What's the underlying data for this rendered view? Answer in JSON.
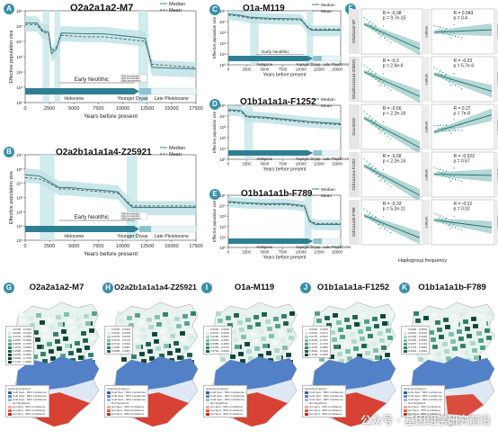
{
  "colors": {
    "median": "#3f7f86",
    "mean": "#555555",
    "band": "#bfe3e6",
    "hi": "#cde9ea",
    "axis": "#333333",
    "holocene": "#2f7f94",
    "dryas": "#8cc3d1",
    "pleist": "#e9f4f7",
    "scatter": "#2a8c86",
    "hot": "#d7301f",
    "cold": "#3b6fc0"
  },
  "legend": {
    "median": "Median",
    "mean": "Mean"
  },
  "watermark": "公众号 · 基因组学研究前沿",
  "period_labels": {
    "early": "Early Neolithic",
    "holocene": "Holocene",
    "dryas": "Younger Dryas",
    "pleist": "Late Pleistocene"
  },
  "dom_labels": {
    "a": "Wild domestication",
    "b": "Rice domestication",
    "c": "Millet domestication"
  },
  "ylabel": "Effective population size",
  "xlabel": "Years before present",
  "panels": [
    {
      "letter": "A",
      "title": "O2a2a1a2-M7",
      "xticks": [
        "0",
        "2500",
        "5000",
        "7500",
        "10000",
        "12500",
        "15000",
        "17500"
      ],
      "yticks": [
        "10⁶",
        "10⁵",
        "10⁴",
        "10³",
        "10²",
        "10¹",
        "10⁰"
      ],
      "showdom": true,
      "median": [
        [
          0,
          5.2
        ],
        [
          1200,
          5.2
        ],
        [
          1800,
          4.7
        ],
        [
          2400,
          4.6
        ],
        [
          2700,
          3.2
        ],
        [
          3200,
          3.5
        ],
        [
          3700,
          4.55
        ],
        [
          6000,
          4.5
        ],
        [
          8000,
          4.5
        ],
        [
          11000,
          4.3
        ],
        [
          12300,
          4.2
        ],
        [
          13000,
          2.3
        ],
        [
          17500,
          2.2
        ]
      ],
      "mean": [
        [
          0,
          5.1
        ],
        [
          1200,
          5.1
        ],
        [
          1800,
          4.6
        ],
        [
          2400,
          4.5
        ],
        [
          2700,
          3.4
        ],
        [
          3200,
          3.6
        ],
        [
          3700,
          4.4
        ],
        [
          6000,
          4.3
        ],
        [
          8000,
          4.3
        ],
        [
          11000,
          4.1
        ],
        [
          12300,
          4.0
        ],
        [
          13000,
          2.5
        ],
        [
          17500,
          2.3
        ]
      ]
    },
    {
      "letter": "B",
      "title": "O2a2b1a1a1a4-Z25921",
      "xticks": [
        "0",
        "2500",
        "5000",
        "7500",
        "10000",
        "12500",
        "15000",
        "17500"
      ],
      "yticks": [
        "10⁶",
        "10⁵",
        "10⁴",
        "10³",
        "10²",
        "10¹",
        "10⁰"
      ],
      "showdom": true,
      "median": [
        [
          0,
          4.6
        ],
        [
          1500,
          4.5
        ],
        [
          2500,
          4.1
        ],
        [
          3500,
          3.7
        ],
        [
          4500,
          3.7
        ],
        [
          6000,
          3.6
        ],
        [
          8000,
          3.5
        ],
        [
          9500,
          3.4
        ],
        [
          10500,
          2.6
        ],
        [
          11000,
          2.3
        ],
        [
          12500,
          2.3
        ],
        [
          17500,
          2.3
        ]
      ],
      "mean": [
        [
          0,
          4.4
        ],
        [
          1500,
          4.3
        ],
        [
          2500,
          4.0
        ],
        [
          3500,
          3.6
        ],
        [
          4500,
          3.6
        ],
        [
          6000,
          3.5
        ],
        [
          8000,
          3.4
        ],
        [
          9500,
          3.3
        ],
        [
          10500,
          2.7
        ],
        [
          11000,
          2.4
        ],
        [
          12500,
          2.4
        ],
        [
          17500,
          2.4
        ]
      ]
    },
    {
      "letter": "C",
      "title": "O1a-M119",
      "xticks": [
        "0",
        "2500",
        "5000",
        "7500",
        "10000",
        "12500",
        "15000"
      ],
      "yticks": [
        "10⁵",
        "10⁴",
        "10³",
        "10²",
        "10¹",
        "10⁰"
      ],
      "showdom": false,
      "median": [
        [
          0,
          4.7
        ],
        [
          1500,
          4.6
        ],
        [
          3000,
          4.4
        ],
        [
          6000,
          4.3
        ],
        [
          10000,
          4.25
        ],
        [
          11000,
          3.4
        ],
        [
          11500,
          3.2
        ],
        [
          15500,
          3.2
        ]
      ],
      "mean": [
        [
          0,
          4.6
        ],
        [
          1500,
          4.5
        ],
        [
          3000,
          4.3
        ],
        [
          6000,
          4.2
        ],
        [
          10000,
          4.15
        ],
        [
          11000,
          3.5
        ],
        [
          11500,
          3.3
        ],
        [
          15500,
          3.3
        ]
      ]
    },
    {
      "letter": "D",
      "title": "O1b1a1a1a-F1252",
      "xticks": [
        "0",
        "2500",
        "5000",
        "7500",
        "10000",
        "12500",
        "15000"
      ],
      "yticks": [
        "10⁵",
        "10⁴",
        "10³",
        "10²",
        "10¹",
        "10⁰"
      ],
      "showdom": false,
      "median": [
        [
          0,
          4.6
        ],
        [
          1800,
          4.5
        ],
        [
          2500,
          4.0
        ],
        [
          5000,
          3.9
        ],
        [
          8000,
          3.7
        ],
        [
          11000,
          3.5
        ],
        [
          13000,
          3.4
        ],
        [
          15500,
          3.3
        ]
      ],
      "mean": [
        [
          0,
          4.5
        ],
        [
          1800,
          4.4
        ],
        [
          2500,
          3.9
        ],
        [
          5000,
          3.8
        ],
        [
          8000,
          3.6
        ],
        [
          11000,
          3.4
        ],
        [
          13000,
          3.3
        ],
        [
          15500,
          3.2
        ]
      ]
    },
    {
      "letter": "E",
      "title": "O1b1a1a1b-F789",
      "xticks": [
        "0",
        "2500",
        "5000",
        "7500",
        "10000",
        "12500",
        "15000"
      ],
      "yticks": [
        "10⁵",
        "10⁴",
        "10³",
        "10²",
        "10¹",
        "10⁰"
      ],
      "showdom": false,
      "median": [
        [
          0,
          4.4
        ],
        [
          2000,
          4.3
        ],
        [
          5000,
          4.2
        ],
        [
          8000,
          4.2
        ],
        [
          10500,
          4.0
        ],
        [
          11200,
          2.5
        ],
        [
          12000,
          2.2
        ],
        [
          15500,
          2.2
        ]
      ],
      "mean": [
        [
          0,
          4.3
        ],
        [
          2000,
          4.2
        ],
        [
          5000,
          4.1
        ],
        [
          8000,
          4.1
        ],
        [
          10500,
          3.9
        ],
        [
          11200,
          2.6
        ],
        [
          12000,
          2.3
        ],
        [
          15500,
          2.3
        ]
      ]
    }
  ],
  "panelF": {
    "letter": "F",
    "xlabel": "Haplogroup frequency",
    "lat": "Latitude",
    "lon": "Longitude",
    "rows": [
      {
        "label": "O2a2a1a2-M7",
        "lat": {
          "r": "R = -0.38",
          "p": "p = 9.7e-15",
          "slope": -1
        },
        "lon": {
          "r": "R = 0.043",
          "p": "p = 0.4",
          "slope": 0.1
        }
      },
      {
        "label": "O2a2b1a1a1a4-Z25921",
        "lat": {
          "r": "R = -0.3",
          "p": "p = 2.6e-9",
          "slope": -1
        },
        "lon": {
          "r": "R = -0.23",
          "p": "p = 5.7e-6",
          "slope": -0.7
        }
      },
      {
        "label": "O1a-M119",
        "lat": {
          "r": "R = -0.56",
          "p": "p < 2.2e-16",
          "slope": -1.2
        },
        "lon": {
          "r": "R = 0.27",
          "p": "p = 7e-8",
          "slope": 0.7
        }
      },
      {
        "label": "O1b1a1a1a-F1252",
        "lat": {
          "r": "R = -0.58",
          "p": "p < 2.2e-16",
          "slope": -1.2
        },
        "lon": {
          "r": "R = -0.022",
          "p": "p = 0.67",
          "slope": -0.05
        }
      },
      {
        "label": "O1b1a1a1b-F789",
        "lat": {
          "r": "R = -0.33",
          "p": "p = 5.2e-11",
          "slope": -0.9
        },
        "lon": {
          "r": "R = -0.12",
          "p": "p = 0.02",
          "slope": -0.3
        }
      }
    ]
  },
  "maps": [
    {
      "letter": "G",
      "title": "O2a2a1a2-M7",
      "freq": [
        "0.0000 - 0.0000",
        "0.0001 - 0.0230",
        "0.0231 - 0.0556",
        "0.0557 - 0.0964",
        "0.0965 - 0.1578",
        "0.1579 - 0.2584",
        "0.2585 - 0.3953",
        "0.3954 - 0.6062",
        "0.6063 - 0.7730",
        "0.7731 - 1.0000"
      ],
      "hot": [
        "Cold Spot - 99% Confidence",
        "Cold Spot - 95% Confidence",
        "Cold Spot - 90% Confidence",
        "Not Significant",
        "Hot Spot - 90% Confidence",
        "Hot Spot - 95% Confidence",
        "Hot Spot - 99% Confidence"
      ]
    },
    {
      "letter": "H",
      "title": "O2a2b1a1a1a4-Z25921",
      "freq": [
        "0.0000 - 0.0000",
        "0.0001 - 0.0078",
        "0.0079 - 0.0278",
        "0.0279 - 0.0723",
        "0.0724 - 0.1524",
        "0.1525 - 0.2807",
        "0.2808 - 0.4387"
      ],
      "hot": [
        "Cold Spot - 99% Confidence",
        "Cold Spot - 95% Confidence",
        "Cold Spot - 90% Confidence",
        "Not Significant",
        "Hot Spot - 90% Confidence",
        "Hot Spot - 95% Confidence",
        "Hot Spot - 99% Confidence"
      ]
    },
    {
      "letter": "I",
      "title": "O1a-M119",
      "freq": [
        "0.0000 - 0.0000",
        "0.0001 - 0.0189",
        "0.0190 - 0.0501",
        "0.0502 - 0.0987",
        "0.0988 - 0.1682",
        "0.1683 - 0.2761",
        "0.2762 - 0.6000"
      ],
      "hot": [
        "Cold Spot - 99% Confidence",
        "Cold Spot - 95% Confidence",
        "Cold Spot - 90% Confidence",
        "Not Significant",
        "Hot Spot - 90% Confidence",
        "Hot Spot - 95% Confidence",
        "Hot Spot - 99% Confidence"
      ]
    },
    {
      "letter": "J",
      "title": "O1b1a1a1a-F1252",
      "freq": [
        "0.0000 - 0.0000",
        "0.0001 - 0.0174",
        "0.0175 - 0.0537",
        "0.0538 - 0.1070",
        "0.1071 - 0.1792",
        "0.1793 - 0.2863",
        "0.2864 - 0.4444",
        "0.4445 - 1.0000"
      ],
      "hot": [
        "Cold Spot - 99% Confidence",
        "Cold Spot - 95% Confidence",
        "Cold Spot - 90% Confidence",
        "Not Significant",
        "Hot Spot - 90% Confidence",
        "Hot Spot - 95% Confidence",
        "Hot Spot - 99% Confidence"
      ]
    },
    {
      "letter": "K",
      "title": "O1b1a1a1b-F789",
      "freq": [
        "0.0000 - 0.0000",
        "0.0001 - 0.0149",
        "0.0150 - 0.0444",
        "0.0445 - 0.0936",
        "0.0937 - 0.1731",
        "0.1732 - 0.2963",
        "0.2964 - 0.5000"
      ],
      "hot": [
        "Cold Spot - 99% Confidence",
        "Cold Spot - 95% Confidence",
        "Cold Spot - 90% Confidence",
        "Not Significant",
        "Hot Spot - 90% Confidence",
        "Hot Spot - 95% Confidence",
        "Hot Spot - 99% Confidence"
      ]
    }
  ],
  "optimized_hotspot": "Optimized Hotspot",
  "chart_data": [
    {
      "type": "line",
      "panel": "A",
      "title": "O2a2a1a2-M7",
      "xlabel": "Years before present",
      "ylabel": "Effective population size",
      "xlim": [
        0,
        17500
      ],
      "ylim": [
        "10^0",
        "10^6"
      ],
      "y_scale": "log",
      "series": [
        {
          "name": "Median",
          "x": [
            0,
            1200,
            1800,
            2400,
            2700,
            3200,
            3700,
            6000,
            8000,
            11000,
            12300,
            13000,
            17500
          ],
          "log10_y": [
            5.2,
            5.2,
            4.7,
            4.6,
            3.2,
            3.5,
            4.55,
            4.5,
            4.5,
            4.3,
            4.2,
            2.3,
            2.2
          ]
        },
        {
          "name": "Mean",
          "x": [
            0,
            1200,
            1800,
            2400,
            2700,
            3200,
            3700,
            6000,
            8000,
            11000,
            12300,
            13000,
            17500
          ],
          "log10_y": [
            5.1,
            5.1,
            4.6,
            4.5,
            3.4,
            3.6,
            4.4,
            4.3,
            4.3,
            4.1,
            4.0,
            2.5,
            2.3
          ]
        }
      ]
    },
    {
      "type": "line",
      "panel": "B",
      "title": "O2a2b1a1a1a4-Z25921",
      "xlabel": "Years before present",
      "ylabel": "Effective population size",
      "xlim": [
        0,
        17500
      ],
      "ylim": [
        "10^0",
        "10^6"
      ],
      "y_scale": "log"
    },
    {
      "type": "line",
      "panel": "C",
      "title": "O1a-M119",
      "xlabel": "Years before present",
      "ylabel": "Effective population size",
      "xlim": [
        0,
        15500
      ],
      "ylim": [
        "10^0",
        "10^5"
      ],
      "y_scale": "log"
    },
    {
      "type": "line",
      "panel": "D",
      "title": "O1b1a1a1a-F1252",
      "xlabel": "Years before present",
      "ylabel": "Effective population size",
      "xlim": [
        0,
        15500
      ],
      "ylim": [
        "10^0",
        "10^5"
      ],
      "y_scale": "log"
    },
    {
      "type": "line",
      "panel": "E",
      "title": "O1b1a1a1b-F789",
      "xlabel": "Years before present",
      "ylabel": "Effective population size",
      "xlim": [
        0,
        15500
      ],
      "ylim": [
        "10^0",
        "10^5"
      ],
      "y_scale": "log"
    },
    {
      "type": "scatter",
      "panel": "F",
      "xlabel": "Haplogroup frequency",
      "correlations": [
        {
          "haplogroup": "O2a2a1a2-M7",
          "latitude": {
            "R": -0.38,
            "p": "9.7e-15"
          },
          "longitude": {
            "R": 0.043,
            "p": "0.4"
          }
        },
        {
          "haplogroup": "O2a2b1a1a1a4-Z25921",
          "latitude": {
            "R": -0.3,
            "p": "2.6e-9"
          },
          "longitude": {
            "R": -0.23,
            "p": "5.7e-6"
          }
        },
        {
          "haplogroup": "O1a-M119",
          "latitude": {
            "R": -0.56,
            "p": "< 2.2e-16"
          },
          "longitude": {
            "R": 0.27,
            "p": "7e-8"
          }
        },
        {
          "haplogroup": "O1b1a1a1a-F1252",
          "latitude": {
            "R": -0.58,
            "p": "< 2.2e-16"
          },
          "longitude": {
            "R": -0.022,
            "p": "0.67"
          }
        },
        {
          "haplogroup": "O1b1a1a1b-F789",
          "latitude": {
            "R": -0.33,
            "p": "5.2e-11"
          },
          "longitude": {
            "R": -0.12,
            "p": "0.02"
          }
        }
      ]
    }
  ]
}
